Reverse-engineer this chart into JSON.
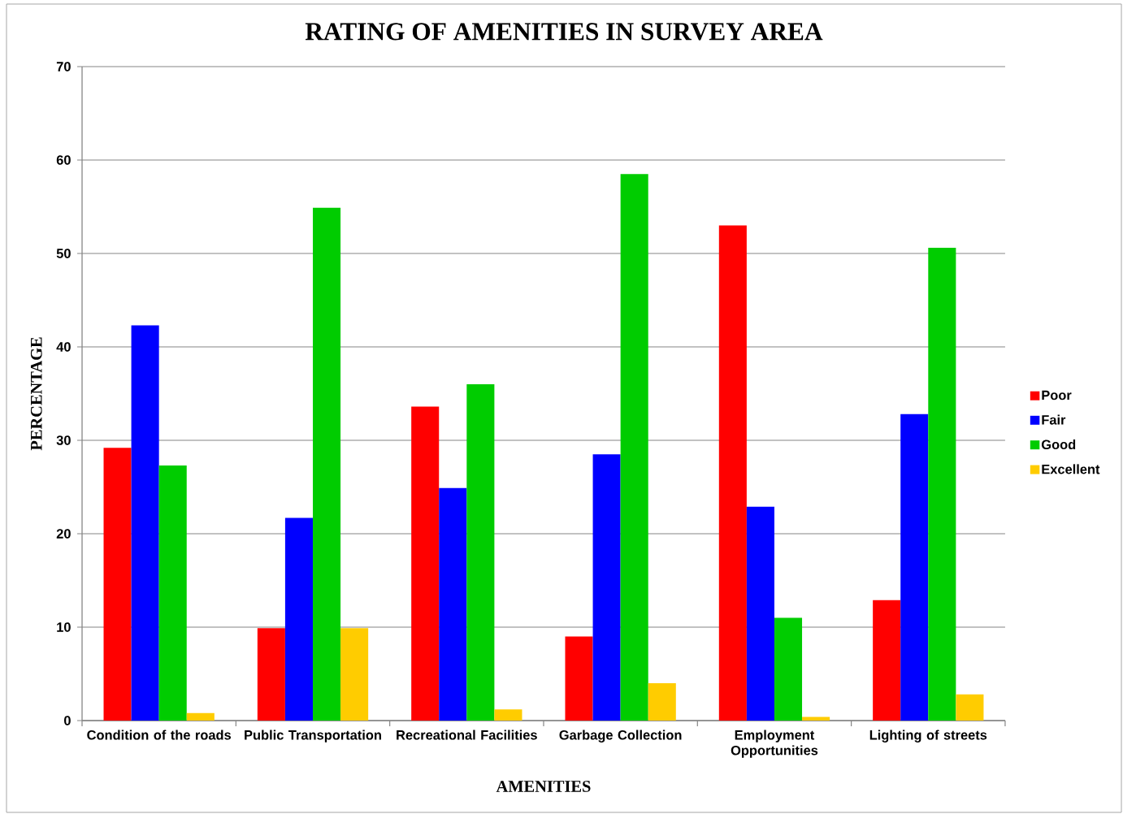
{
  "chart_data": {
    "type": "bar",
    "title": "RATING OF AMENITIES IN SURVEY AREA",
    "xlabel": "AMENITIES",
    "ylabel": "PERCENTAGE",
    "categories": [
      "Condition of the roads",
      "Public Transportation",
      "Recreational Facilities",
      "Garbage Collection",
      "Employment Opportunities",
      "Lighting of streets"
    ],
    "series": [
      {
        "name": "Poor",
        "color": "#ff0000",
        "values": [
          29.2,
          9.9,
          33.6,
          9.0,
          53.0,
          12.9
        ]
      },
      {
        "name": "Fair",
        "color": "#0000ff",
        "values": [
          42.3,
          21.7,
          24.9,
          28.5,
          22.9,
          32.8
        ]
      },
      {
        "name": "Good",
        "color": "#00cc00",
        "values": [
          27.3,
          54.9,
          36.0,
          58.5,
          11.0,
          50.6
        ]
      },
      {
        "name": "Excellent",
        "color": "#ffcc00",
        "values": [
          0.8,
          9.9,
          1.2,
          4.0,
          0.4,
          2.8
        ]
      }
    ],
    "ylim": [
      0,
      70
    ],
    "yticks": [
      0,
      10,
      20,
      30,
      40,
      50,
      60,
      70
    ],
    "grid": "y",
    "legend": "right"
  }
}
